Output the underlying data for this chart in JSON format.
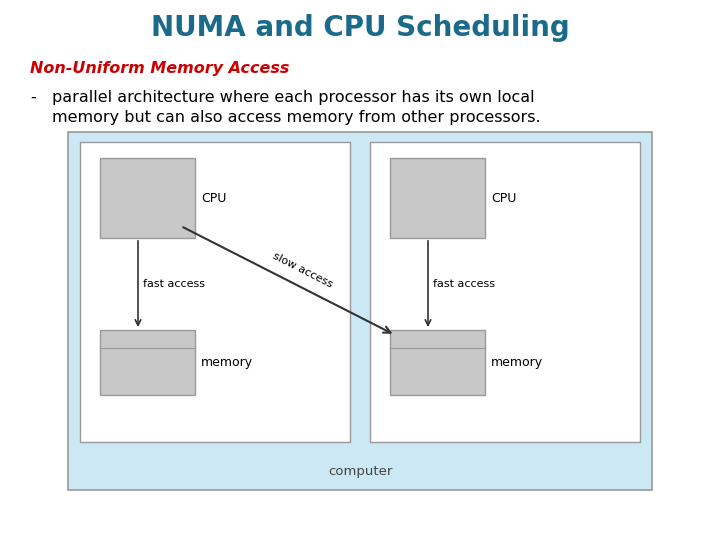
{
  "title": "NUMA and CPU Scheduling",
  "title_color": "#1a6b8a",
  "title_fontsize": 20,
  "subtitle_normal_color": "#cc0000",
  "bullet_text_line1": "parallel architecture where each processor has its own local",
  "bullet_text_line2": "memory but can also access memory from other processors.",
  "bg_outer_color": "#cce8f4",
  "bg_inner_color": "#ffffff",
  "cpu_box_color": "#c8c8c8",
  "mem_box_color": "#c8c8c8",
  "border_color": "#999999",
  "computer_label": "computer",
  "slow_access_label": "slow access",
  "fast_access_label": "fast access",
  "cpu_label": "CPU",
  "memory_label": "memory",
  "arrow_color": "#333333"
}
